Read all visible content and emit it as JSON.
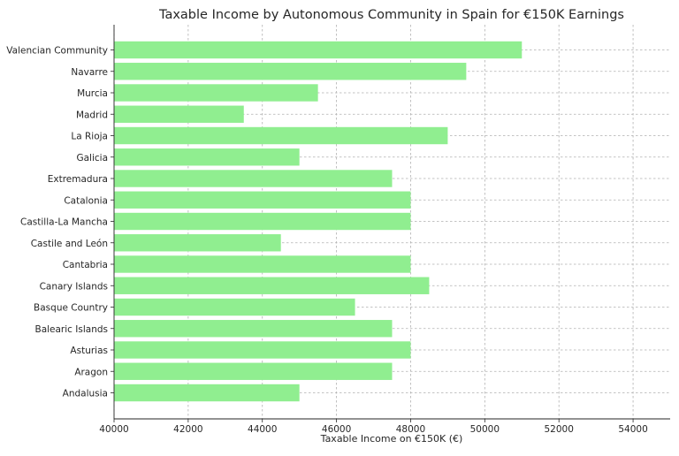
{
  "chart_data": {
    "type": "bar",
    "orientation": "horizontal",
    "title": "Taxable Income by Autonomous Community in Spain for €150K Earnings",
    "xlabel": "Taxable Income on €150K (€)",
    "ylabel": "",
    "categories": [
      "Andalusia",
      "Aragon",
      "Asturias",
      "Balearic Islands",
      "Basque Country",
      "Canary Islands",
      "Cantabria",
      "Castile and León",
      "Castilla-La Mancha",
      "Catalonia",
      "Extremadura",
      "Galicia",
      "La Rioja",
      "Madrid",
      "Murcia",
      "Navarre",
      "Valencian Community"
    ],
    "values": [
      45000,
      47500,
      48000,
      47500,
      46500,
      48500,
      48000,
      44500,
      48000,
      48000,
      47500,
      45000,
      49000,
      43500,
      45500,
      49500,
      51000
    ],
    "xlim": [
      40000,
      55000
    ],
    "xticks": [
      "40000",
      "42000",
      "44000",
      "46000",
      "48000",
      "50000",
      "52000",
      "54000"
    ],
    "grid": true,
    "bar_color": "#90ee90"
  }
}
